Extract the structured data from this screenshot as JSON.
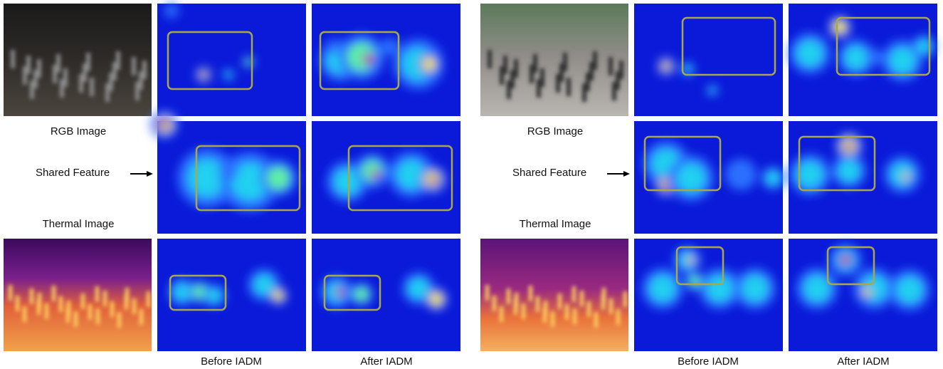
{
  "panels": [
    {
      "rgb_label": "RGB Image",
      "shared_label": "Shared Feature",
      "thermal_label": "Thermal Image",
      "before_label": "Before IADM",
      "after_label": "After IADM"
    },
    {
      "rgb_label": "RGB Image",
      "shared_label": "Shared Feature",
      "thermal_label": "Thermal Image",
      "before_label": "Before IADM",
      "after_label": "After IADM"
    }
  ]
}
